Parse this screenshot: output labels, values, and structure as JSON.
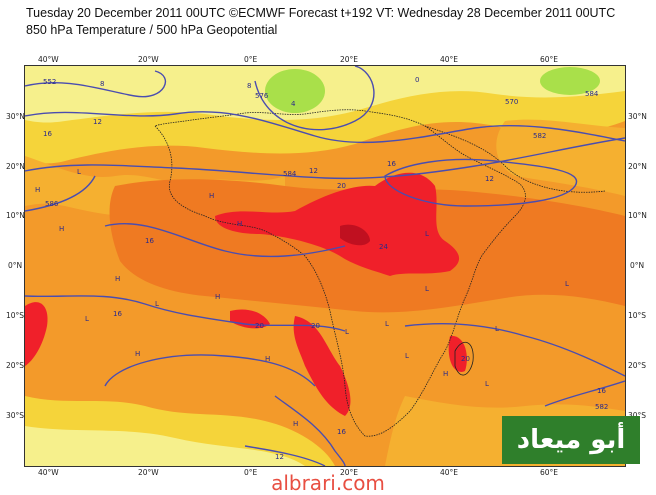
{
  "header": {
    "line1": "Tuesday 20 December 2011 00UTC ©ECMWF Forecast t+192 VT: Wednesday 28 December 2011 00UTC",
    "line2": "850 hPa Temperature / 500 hPa Geopotential"
  },
  "axes": {
    "top": [
      "40°W",
      "20°W",
      "0°E",
      "20°E",
      "40°E",
      "60°E"
    ],
    "bottom": [
      "40°W",
      "20°W",
      "0°E",
      "20°E",
      "40°E",
      "60°E"
    ],
    "left": [
      "30°N",
      "20°N",
      "10°N",
      "0°N",
      "10°S",
      "20°S",
      "30°S"
    ],
    "right": [
      "30°N",
      "20°N",
      "10°N",
      "0°N",
      "10°S",
      "20°S",
      "30°S"
    ]
  },
  "contour_labels": [
    "552",
    "8",
    "576",
    "12",
    "16",
    "8",
    "4",
    "0",
    "570",
    "584",
    "582",
    "16",
    "12",
    "20",
    "12",
    "584",
    "586",
    "16",
    "24",
    "20",
    "20",
    "16",
    "20",
    "16",
    "582",
    "16",
    "12"
  ],
  "pressure_markers": [
    "H",
    "L",
    "H",
    "H",
    "H",
    "H",
    "L",
    "H",
    "L",
    "H",
    "H",
    "L",
    "H",
    "L",
    "L",
    "L",
    "L",
    "H",
    "L",
    "L",
    "L",
    "H"
  ],
  "colors": {
    "cold_green": "#a9e04a",
    "light_yellow": "#f6f08c",
    "yellow": "#f5d43a",
    "light_orange": "#f5b030",
    "orange": "#f39a2a",
    "dark_orange": "#ef7a22",
    "red": "#f0202a",
    "dark_red": "#c01020",
    "contour": "#4a4db0",
    "coast": "#222222"
  },
  "watermark": "أبو ميعاد",
  "site": "albrari.com"
}
